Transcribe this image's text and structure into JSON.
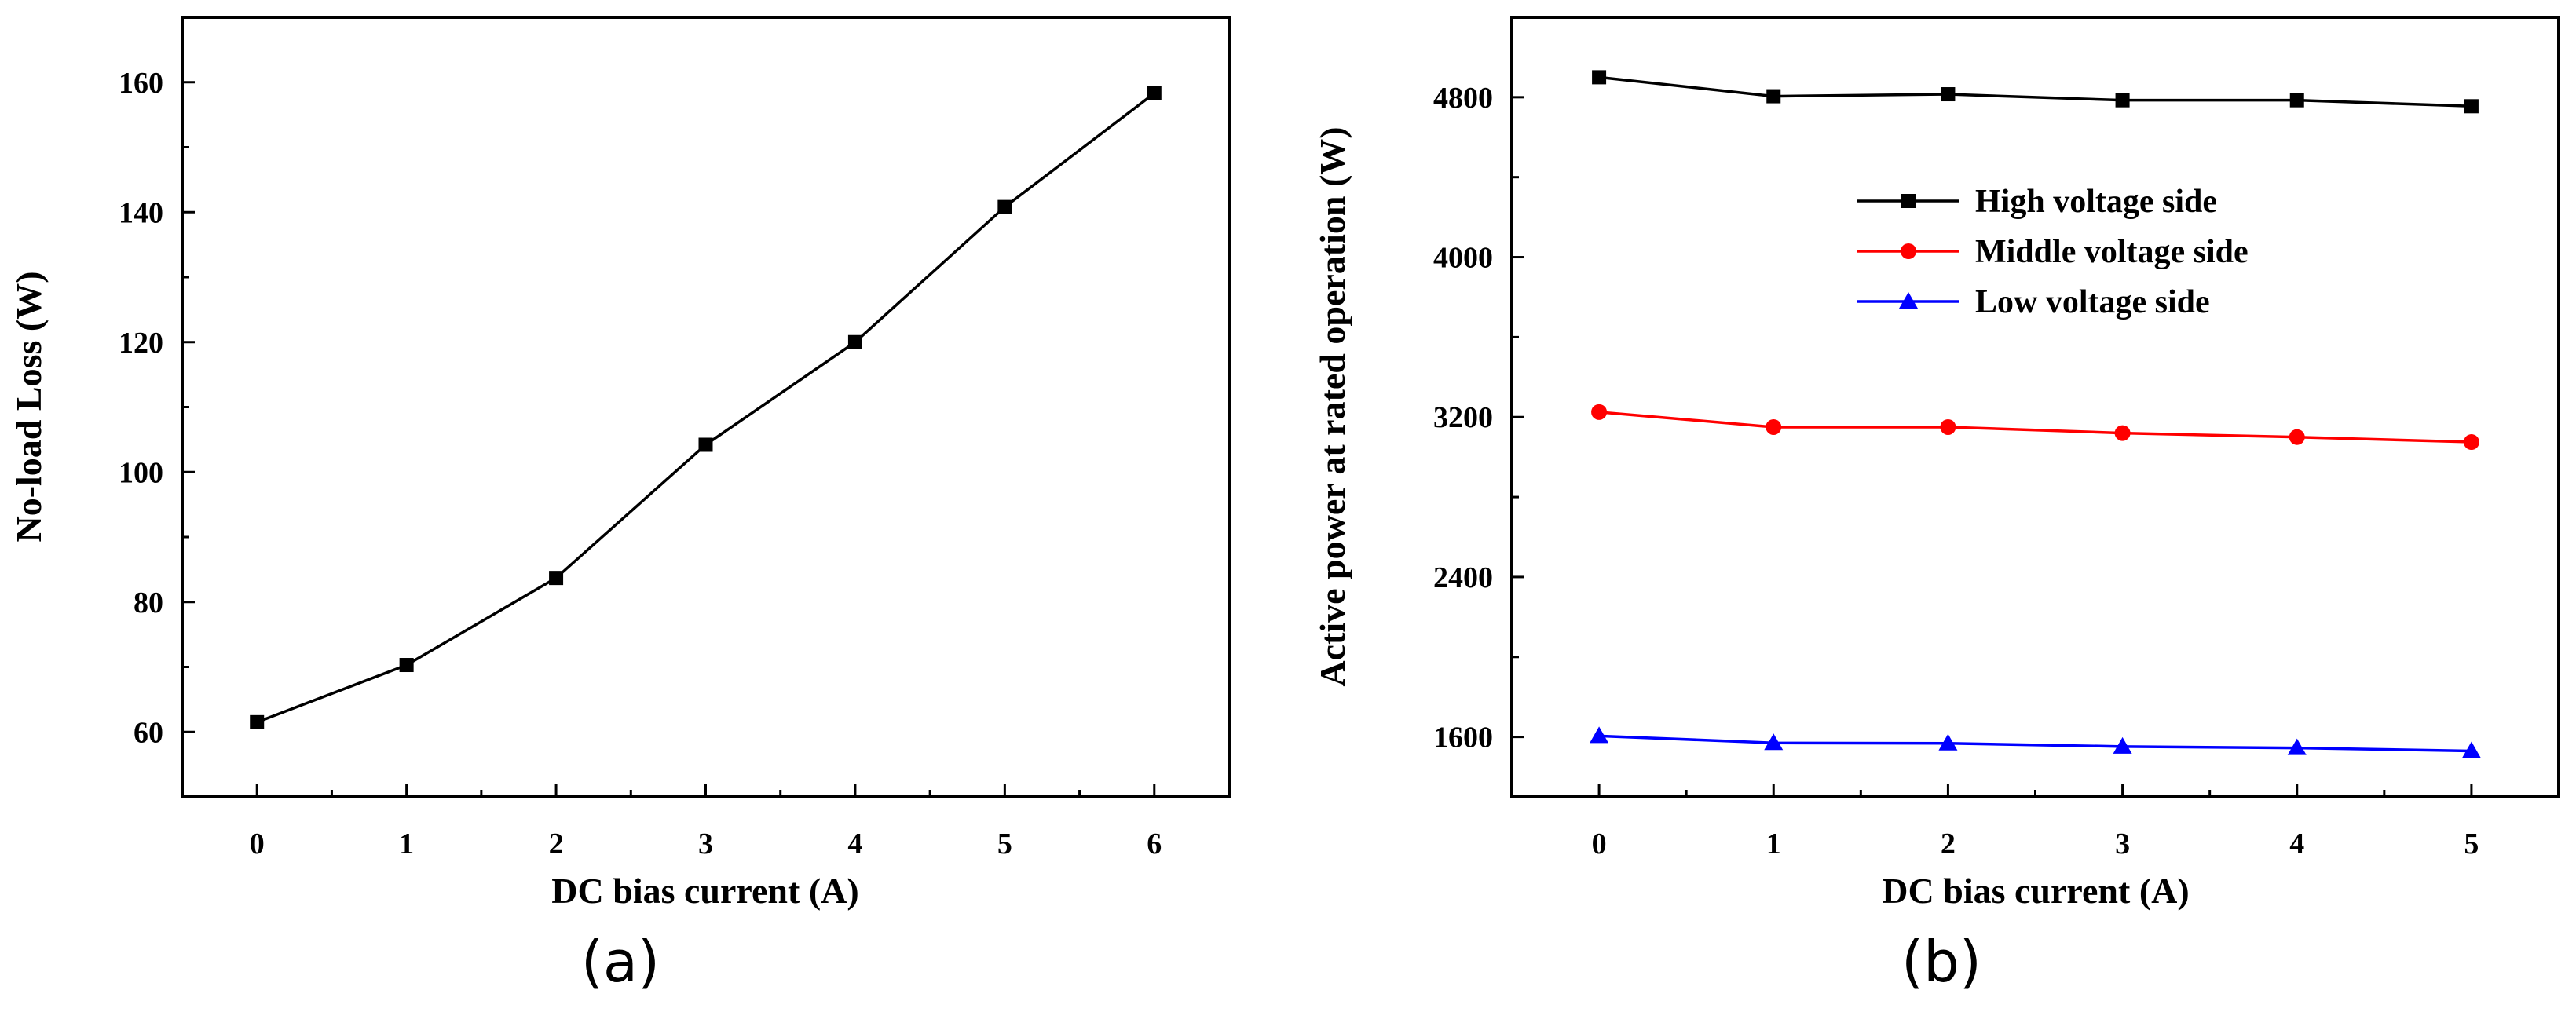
{
  "chart_data": [
    {
      "type": "line",
      "panel_label": "(a)",
      "xlabel": "DC bias current (A)",
      "ylabel": "No-load Loss (W)",
      "xlim": [
        -0.5,
        6.5
      ],
      "ylim": [
        50,
        170
      ],
      "x_ticks": [
        0,
        1,
        2,
        3,
        4,
        5,
        6
      ],
      "y_ticks": [
        60,
        80,
        100,
        120,
        140,
        160
      ],
      "grid": false,
      "series": [
        {
          "name": "No-load Loss",
          "marker": "square",
          "color": "#000000",
          "x": [
            0,
            1,
            2,
            3,
            4,
            5,
            6
          ],
          "values": [
            61.5,
            70.3,
            83.7,
            104.2,
            120.0,
            140.8,
            158.3
          ]
        }
      ]
    },
    {
      "type": "line",
      "panel_label": "(b)",
      "xlabel": "DC bias current (A)",
      "ylabel": "Active power at rated operation (W)",
      "xlim": [
        -0.5,
        5.5
      ],
      "ylim": [
        1300,
        5200
      ],
      "x_ticks": [
        0,
        1,
        2,
        3,
        4,
        5
      ],
      "y_ticks": [
        1600,
        2400,
        3200,
        4000,
        4800
      ],
      "grid": false,
      "legend_position": "upper-center",
      "series": [
        {
          "name": "High voltage side",
          "marker": "square",
          "color": "#000000",
          "x": [
            0,
            1,
            2,
            3,
            4,
            5
          ],
          "values": [
            4900,
            4805,
            4815,
            4785,
            4785,
            4755
          ]
        },
        {
          "name": "Middle voltage side",
          "marker": "circle",
          "color": "#ff0000",
          "x": [
            0,
            1,
            2,
            3,
            4,
            5
          ],
          "values": [
            3225,
            3150,
            3150,
            3120,
            3100,
            3075
          ]
        },
        {
          "name": "Low voltage side",
          "marker": "triangle",
          "color": "#0000ff",
          "x": [
            0,
            1,
            2,
            3,
            4,
            5
          ],
          "values": [
            1605,
            1570,
            1568,
            1552,
            1545,
            1530
          ]
        }
      ]
    }
  ]
}
